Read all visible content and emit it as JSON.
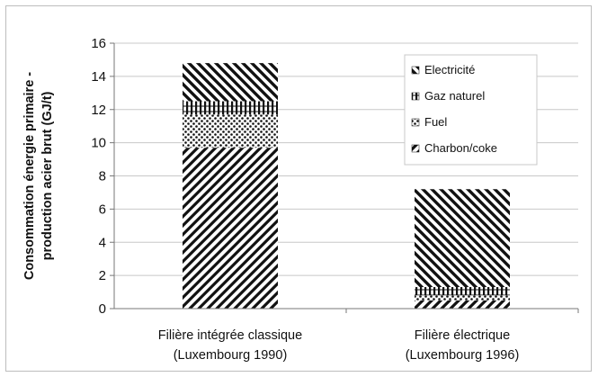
{
  "chart_data": {
    "type": "bar",
    "stacked": true,
    "categories": [
      [
        "Filière intégrée classique",
        "(Luxembourg 1990)"
      ],
      [
        "Filière électrique",
        "(Luxembourg 1996)"
      ]
    ],
    "ylabel": [
      "Consommation énergie primaire -",
      "production acier brut (GJ/t)"
    ],
    "ylim": [
      0,
      16
    ],
    "yticks": [
      0,
      2,
      4,
      6,
      8,
      10,
      12,
      14,
      16
    ],
    "grid": true,
    "legend_position": "top-right",
    "series": [
      {
        "name": "Charbon/coke",
        "pattern": "diag-up-wide",
        "values": [
          9.7,
          0.5
        ]
      },
      {
        "name": "Fuel",
        "pattern": "dots",
        "values": [
          2.0,
          0.3
        ]
      },
      {
        "name": "Gaz naturel",
        "pattern": "vbars",
        "values": [
          0.8,
          0.5
        ]
      },
      {
        "name": "Electricité",
        "pattern": "diag-down",
        "values": [
          2.3,
          5.9
        ]
      }
    ],
    "legend_order": [
      3,
      2,
      1,
      0
    ]
  }
}
